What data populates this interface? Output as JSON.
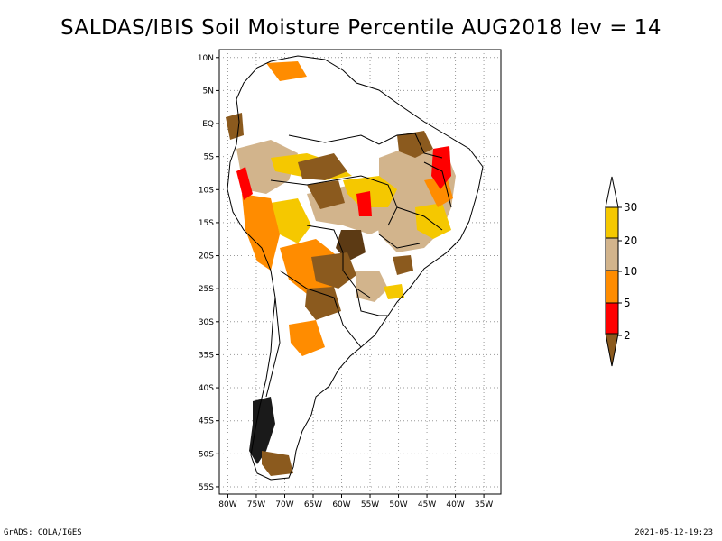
{
  "title": "SALDAS/IBIS Soil Moisture Percentile AUG2018 lev = 14",
  "map": {
    "lat_labels": [
      "10N",
      "5N",
      "EQ",
      "5S",
      "10S",
      "15S",
      "20S",
      "25S",
      "30S",
      "35S",
      "40S",
      "45S",
      "50S",
      "55S"
    ],
    "lon_labels": [
      "80W",
      "75W",
      "70W",
      "65W",
      "60W",
      "55W",
      "50W",
      "45W",
      "40W",
      "35W"
    ],
    "lat_range": [
      -56,
      12
    ],
    "lon_range": [
      -81.5,
      -32
    ]
  },
  "legend": {
    "levels": [
      "30",
      "20",
      "10",
      "5",
      "2"
    ],
    "colors": {
      "above_30": "#ffffff",
      "20_30": "#f5c800",
      "10_20": "#d2b48c",
      "5_10": "#ff8c00",
      "2_5": "#ff0000",
      "below_2": "#8b5a1e"
    }
  },
  "footer": {
    "left": "GrADS: COLA/IGES",
    "right": "2021-05-12-19:23"
  }
}
